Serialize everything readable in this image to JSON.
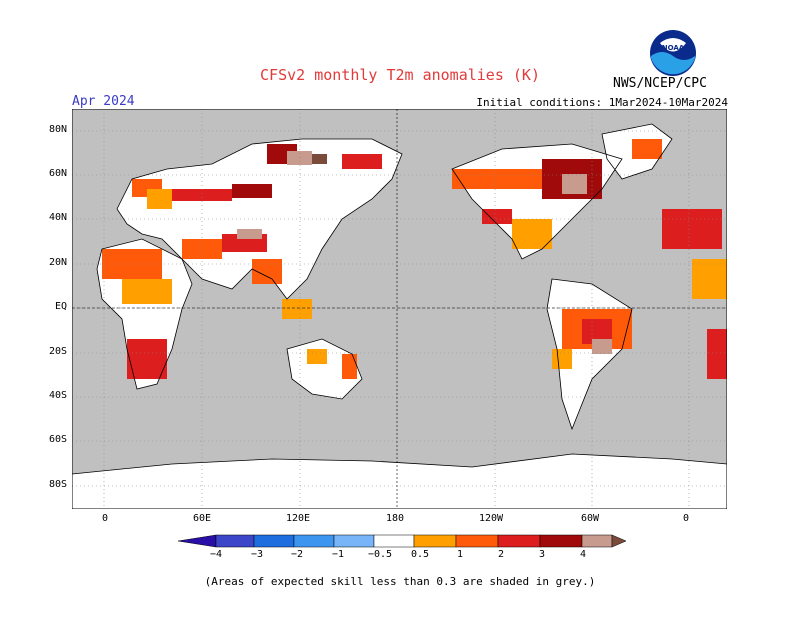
{
  "header": {
    "title": "CFSv2 monthly T2m anomalies (K)",
    "month": "Apr 2024",
    "initial_conditions": "Initial conditions: 1Mar2024-10Mar2024",
    "agency": "NWS/NCEP/CPC",
    "logo_text": "NOAA"
  },
  "map": {
    "lat_labels": [
      "80N",
      "60N",
      "40N",
      "20N",
      "EQ",
      "20S",
      "40S",
      "60S",
      "80S"
    ],
    "lon_labels": [
      "0",
      "60E",
      "120E",
      "180",
      "120W",
      "60W",
      "0"
    ],
    "colors": {
      "ocean_grey": "#c0c0c0",
      "land_white": "#ffffff",
      "anom_0_5": "#ffa000",
      "anom_1": "#ff5a0a",
      "anom_2": "#dc1e1e",
      "anom_3": "#a00a0a",
      "anom_4": "#c89b8f",
      "anom_5": "#7a4a3a"
    }
  },
  "colorbar": {
    "labels": [
      "−4",
      "−3",
      "−2",
      "−1",
      "−0.5",
      "0.5",
      "1",
      "2",
      "3",
      "4"
    ],
    "colors": [
      "#2a0ea8",
      "#3c46c8",
      "#1e6ee0",
      "#3c96f0",
      "#78b4f8",
      "#ffffff",
      "#ffa000",
      "#ff5a0a",
      "#dc1e1e",
      "#a00a0a",
      "#c89b8f",
      "#7a4a3a"
    ]
  },
  "footnote": "(Areas of expected skill less than 0.3 are shaded in grey.)"
}
